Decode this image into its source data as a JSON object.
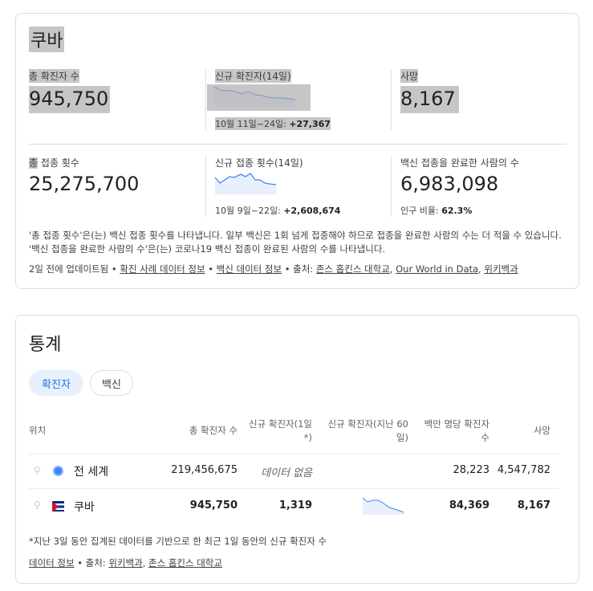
{
  "overview": {
    "title": "쿠바",
    "total_cases_label": "총 확진자 수",
    "total_cases": "945,750",
    "new_cases_label": "신규 확진자(14일)",
    "new_cases_range": "10월 11일~24일: ",
    "new_cases_delta": "+27,367",
    "deaths_label": "사망",
    "deaths": "8,167",
    "total_doses_label_hl": "총",
    "total_doses_label": " 접종 횟수",
    "total_doses": "25,275,700",
    "new_doses_label": "신규 접종 횟수(14일)",
    "new_doses_range": "10월 9일~22일: ",
    "new_doses_delta": "+2,608,674",
    "vaccinated_label": "백신 접종을 완료한 사람의 수",
    "vaccinated": "6,983,098",
    "pop_ratio_label": "인구 비율: ",
    "pop_ratio": "62.3%",
    "note": "'총 접종 횟수'은(는) 백신 접종 횟수를 나타냅니다. 일부 백신은 1회 넘게 접종해야 하므로 접종을 완료한 사람의 수는 더 적을 수 있습니다. '백신 접종을 완료한 사람의 수'은(는) 코로나19 백신 접종이 완료된 사람의 수를 나타냅니다.",
    "updated": "2일 전에 업데이트됨 • ",
    "link_cases": "확진 사례 데이터 정보",
    "sep": " • ",
    "link_vaccine": "백신 데이터 정보",
    "source": " • 출처: ",
    "src1": "존스 홉킨스 대학교",
    "comma": ", ",
    "src2": "Our World in Data",
    "src3": "위키백과"
  },
  "stats": {
    "title": "통계",
    "tabs": [
      "확진자",
      "백신"
    ],
    "headers": [
      "위치",
      "총 확진자 수",
      "신규 확진자(1일*)",
      "신규 확진자(지난 60일)",
      "백만 명당 확진자 수",
      "사망"
    ],
    "rows": [
      {
        "location": "전 세계",
        "total": "219,456,675",
        "new": "데이터 없음",
        "per_million": "28,223",
        "deaths": "4,547,782"
      },
      {
        "location": "쿠바",
        "total": "945,750",
        "new": "1,319",
        "per_million": "84,369",
        "deaths": "8,167"
      }
    ],
    "footnote": "*지난 3일 동안 집계된 데이터를 기반으로 한 최근 1일 동안의 신규 확진자 수",
    "data_info": "데이터 정보",
    "source": " • 출처: ",
    "src1": "위키백과",
    "comma": ", ",
    "src2": "존스 홉킨스 대학교"
  },
  "colors": {
    "accent": "#4285f4",
    "chip_active": "#e8f0fe"
  }
}
